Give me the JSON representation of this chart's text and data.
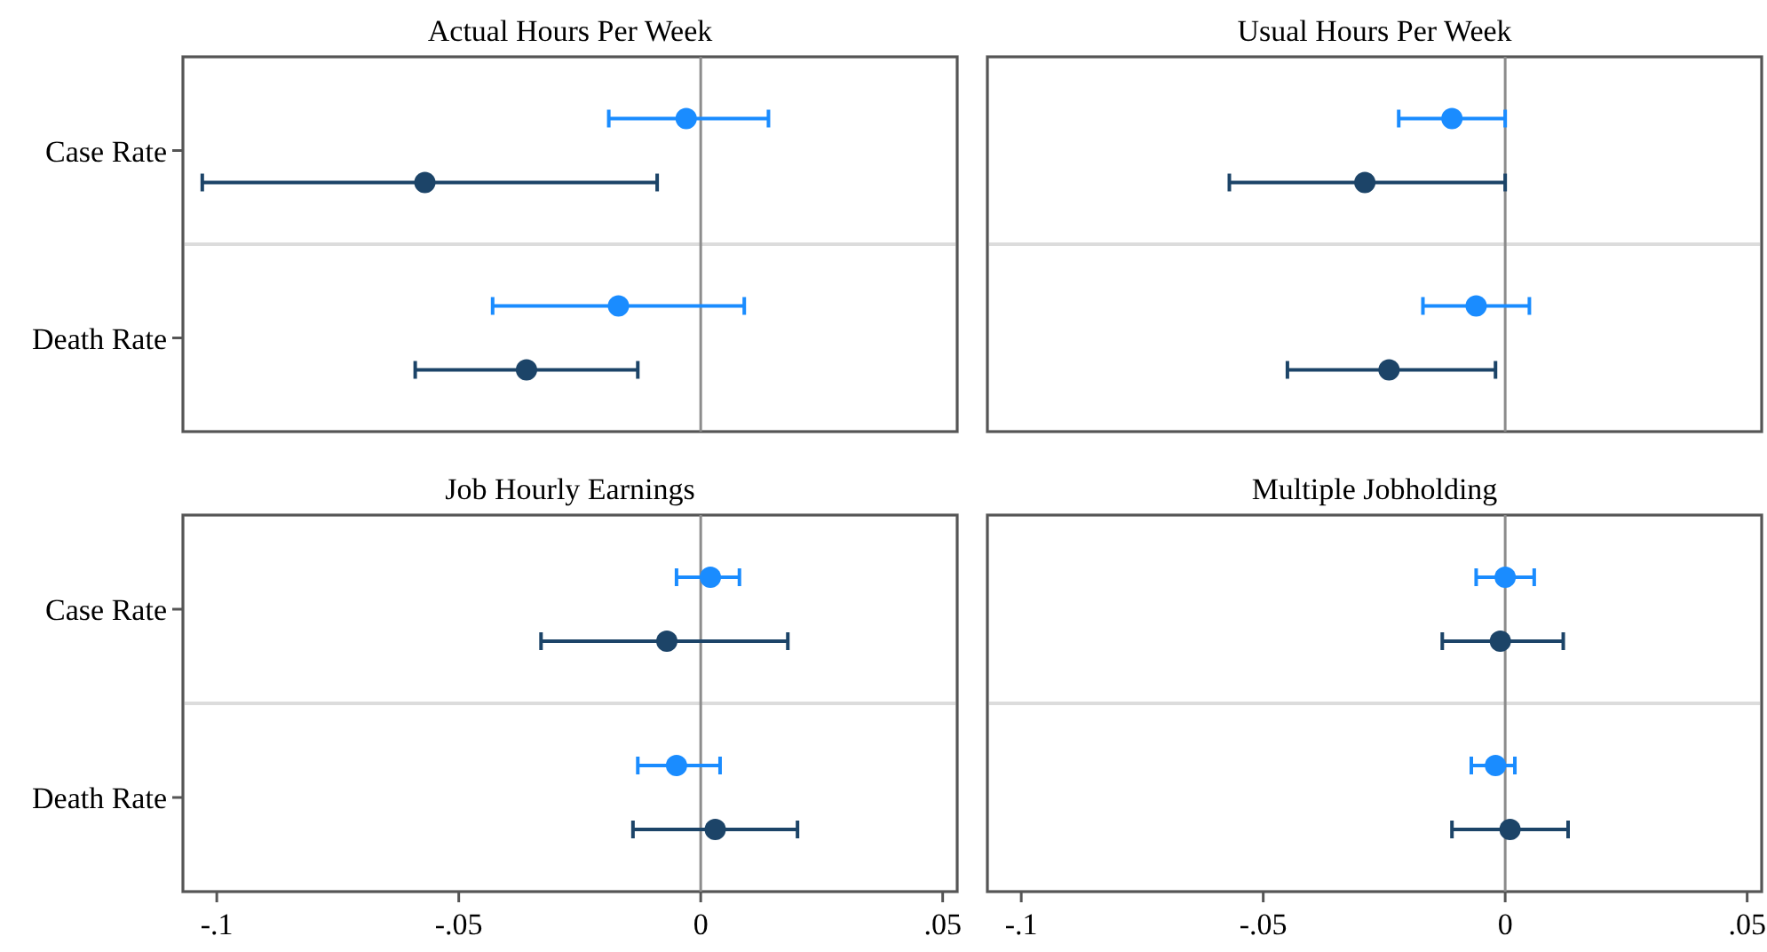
{
  "chart_data": [
    {
      "type": "scatter",
      "title": "Actual Hours Per Week",
      "orientation": "horizontal",
      "categories": [
        "Case Rate",
        "Death Rate"
      ],
      "marker": "circle",
      "tick_labels": "y",
      "series": [
        {
          "color": "#1a8cff",
          "values": [
            -0.003,
            -0.017
          ],
          "errors": [
            [
              -0.019,
              0.014
            ],
            [
              -0.043,
              0.009
            ]
          ]
        },
        {
          "color": "#1c4468",
          "values": [
            -0.057,
            -0.036
          ],
          "errors": [
            [
              -0.103,
              -0.009
            ],
            [
              -0.059,
              -0.013
            ]
          ]
        }
      ],
      "xlim": [
        -0.107,
        0.053
      ],
      "ref_lines": [
        {
          "axis": "x",
          "value": 0,
          "color": "#8c8c8c"
        }
      ]
    },
    {
      "type": "scatter",
      "title": "Usual Hours Per Week",
      "orientation": "horizontal",
      "categories": [
        null,
        null
      ],
      "marker": "circle",
      "tick_labels": false,
      "series": [
        {
          "color": "#1a8cff",
          "values": [
            -0.011,
            -0.006
          ],
          "errors": [
            [
              -0.022,
              0
            ],
            [
              -0.017,
              0.005
            ]
          ]
        },
        {
          "color": "#1c4468",
          "values": [
            -0.029,
            -0.024
          ],
          "errors": [
            [
              -0.057,
              0
            ],
            [
              -0.045,
              -0.002
            ]
          ]
        }
      ],
      "xlim": [
        -0.107,
        0.053
      ],
      "ref_lines": [
        {
          "axis": "x",
          "value": 0,
          "color": "#8c8c8c"
        }
      ]
    },
    {
      "type": "scatter",
      "title": "Job Hourly Earnings",
      "orientation": "horizontal",
      "categories": [
        "Case Rate",
        "Death Rate"
      ],
      "marker": "circle",
      "series": [
        {
          "color": "#1a8cff",
          "values": [
            0.002,
            -0.005
          ],
          "errors": [
            [
              -0.005,
              0.008
            ],
            [
              -0.013,
              0.004
            ]
          ]
        },
        {
          "color": "#1c4468",
          "values": [
            -0.007,
            0.003
          ],
          "errors": [
            [
              -0.033,
              0.018
            ],
            [
              -0.014,
              0.02
            ]
          ]
        }
      ],
      "xlim": [
        -0.107,
        0.053
      ],
      "xticks": [
        {
          "value": -0.1,
          "label": "-.1"
        },
        {
          "value": -0.05,
          "label": "-.05"
        },
        0,
        {
          "value": 0.05,
          "label": ".05"
        }
      ],
      "ref_lines": [
        {
          "axis": "x",
          "value": 0,
          "color": "#8c8c8c"
        }
      ]
    },
    {
      "type": "scatter",
      "title": "Multiple Jobholding",
      "orientation": "horizontal",
      "categories": [
        null,
        null
      ],
      "marker": "circle",
      "tick_labels": "x",
      "series": [
        {
          "color": "#1a8cff",
          "values": [
            0,
            -0.002
          ],
          "errors": [
            [
              -0.006,
              0.006
            ],
            [
              -0.007,
              0.002
            ]
          ]
        },
        {
          "color": "#1c4468",
          "values": [
            -0.001,
            0.001
          ],
          "errors": [
            [
              -0.013,
              0.012
            ],
            [
              -0.011,
              0.013
            ]
          ]
        }
      ],
      "xlim": [
        -0.107,
        0.053
      ],
      "xticks": [
        {
          "value": -0.1,
          "label": "-.1"
        },
        {
          "value": -0.05,
          "label": "-.05"
        },
        0,
        {
          "value": 0.05,
          "label": ".05"
        }
      ],
      "ref_lines": [
        {
          "axis": "x",
          "value": 0,
          "color": "#8c8c8c"
        }
      ]
    }
  ]
}
